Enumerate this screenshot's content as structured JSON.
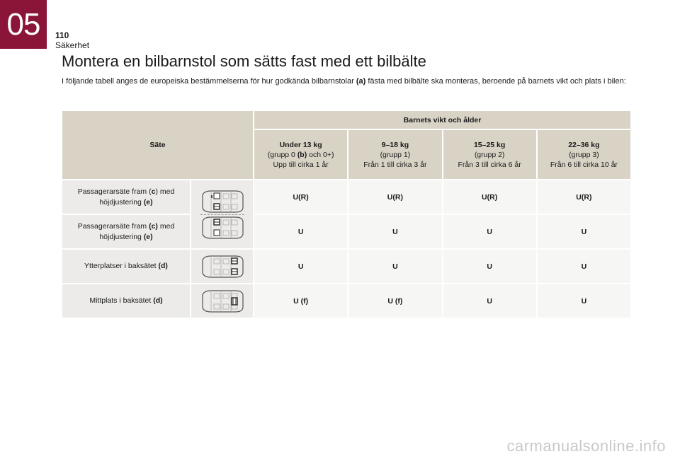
{
  "chapter": "05",
  "page_number": "110",
  "section": "Säkerhet",
  "title": "Montera en bilbarnstol som sätts fast med ett bilbälte",
  "intro": {
    "before": "I följande tabell anges de europeiska bestämmelserna för hur godkända bilbarnstolar ",
    "ref": "(a)",
    "after": " fästa med bilbälte ska monteras, beroende på barnets vikt och plats i bilen:"
  },
  "table": {
    "seat_header": "Säte",
    "group_header": "Barnets vikt och ålder",
    "columns": [
      {
        "weight": "Under 13 kg",
        "group_before": "(grupp 0 ",
        "group_ref": "(b)",
        "group_after": " och 0+)",
        "age": "Upp till cirka 1 år"
      },
      {
        "weight": "9–18 kg",
        "group": "(grupp 1)",
        "age": "Från 1 till cirka 3 år"
      },
      {
        "weight": "15–25 kg",
        "group": "(grupp 2)",
        "age": "Från 3 till cirka 6 år"
      },
      {
        "weight": "22–36 kg",
        "group": "(grupp 3)",
        "age": "Från 6 till cirka 10 år"
      }
    ],
    "rows": [
      {
        "label_before": "Passagerarsäte fram (",
        "label_ref": "c",
        "label_mid": ") med höjdjustering ",
        "label_ref2": "(e)",
        "values": [
          "U(R)",
          "U(R)",
          "U(R)",
          "U(R)"
        ]
      },
      {
        "label_before": "Passagerarsäte fram ",
        "label_ref": "(c)",
        "label_mid": " med höjdjustering ",
        "label_ref2": "(e)",
        "values": [
          "U",
          "U",
          "U",
          "U"
        ]
      },
      {
        "label_before": "Ytterplatser i baksätet ",
        "label_ref": "(d)",
        "values": [
          "U",
          "U",
          "U",
          "U"
        ]
      },
      {
        "label_before": "Mittplats i baksätet ",
        "label_ref": "(d)",
        "values": [
          "U (f)",
          "U (f)",
          "U",
          "U"
        ]
      }
    ]
  },
  "watermark": "carmanualsonline.info",
  "colors": {
    "chapter_tab": "#8a1538",
    "header_bg": "#d9d3c6",
    "label_bg": "#ecebe9",
    "cell_bg": "#f6f6f5"
  }
}
